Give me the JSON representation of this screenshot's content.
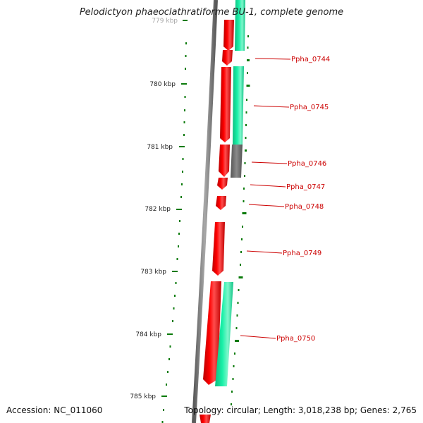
{
  "title": "Pelodictyon phaeoclathratiforme BU-1, complete genome",
  "footer": {
    "accession": "Accession: NC_011060",
    "summary": "Topology: circular; Length: 3,018,238 bp; Genes: 2,765"
  },
  "colors": {
    "forward_cds": "#ff0000",
    "reverse_cds": "#19e6a0",
    "gray_feature": "#6e6e6e",
    "backbone": "#808080",
    "ticks": "#0a7a0a",
    "gene_label": "#cc0000"
  },
  "scale": {
    "unit": "kbp",
    "ticks": [
      {
        "label": "779 kbp"
      },
      {
        "label": "780 kbp"
      },
      {
        "label": "781 kbp"
      },
      {
        "label": "782 kbp"
      },
      {
        "label": "783 kbp"
      },
      {
        "label": "784 kbp"
      },
      {
        "label": "785 kbp"
      }
    ]
  },
  "gene_labels": [
    "Ppha_0744",
    "Ppha_0745",
    "Ppha_0746",
    "Ppha_0747",
    "Ppha_0748",
    "Ppha_0749",
    "Ppha_0750"
  ]
}
